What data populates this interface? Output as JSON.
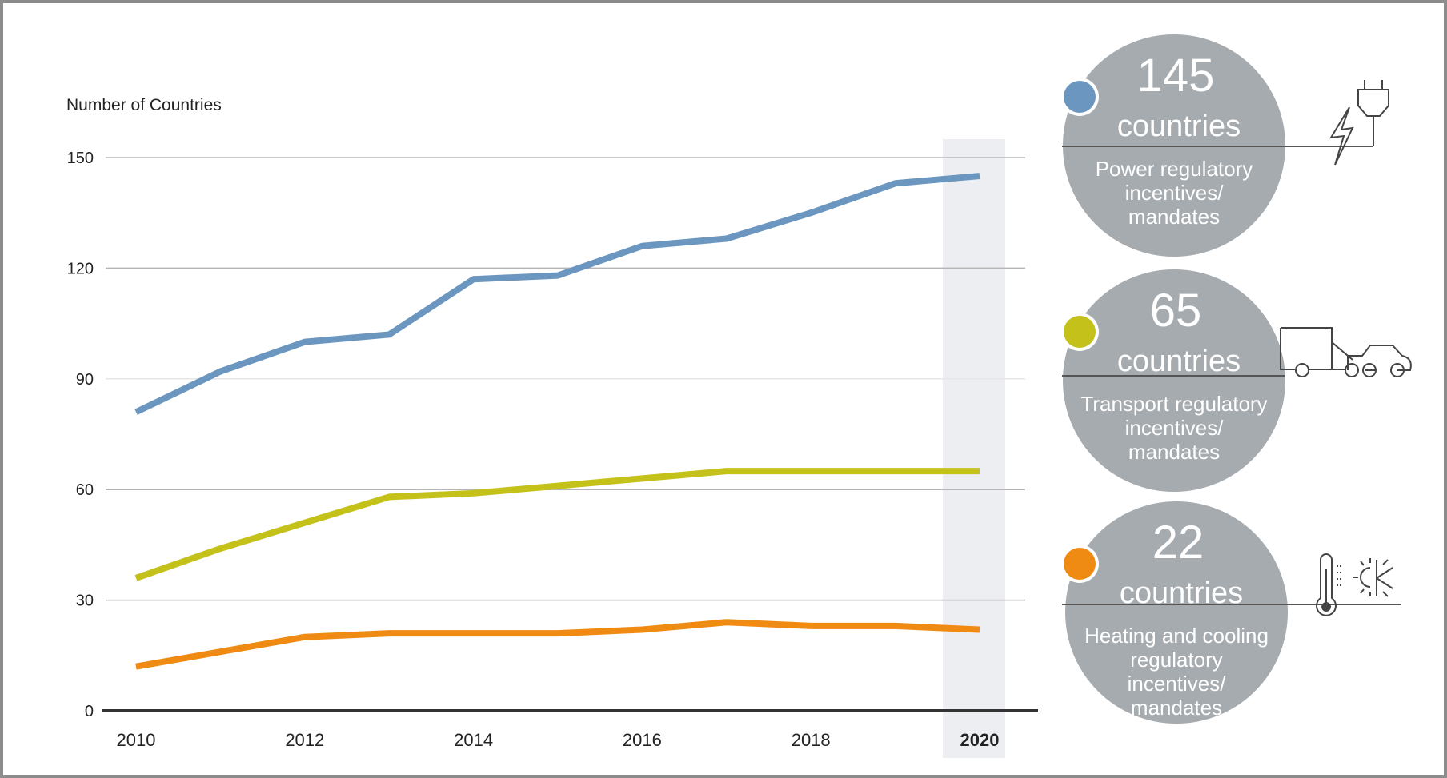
{
  "chart_data": {
    "type": "line",
    "ylabel": "Number of Countries",
    "xlabel": "",
    "x": [
      2010,
      2011,
      2012,
      2013,
      2014,
      2015,
      2016,
      2017,
      2018,
      2019,
      2020
    ],
    "x_tick_labels": [
      "2010",
      "2012",
      "2014",
      "2016",
      "2018",
      "2020"
    ],
    "y_tick_labels": [
      "0",
      "30",
      "60",
      "90",
      "120",
      "150"
    ],
    "ylim": [
      0,
      150
    ],
    "xlim": [
      2010,
      2020
    ],
    "grid": "horizontal",
    "highlighted_x": 2020,
    "series": [
      {
        "color": "#6b96bf",
        "values": [
          81,
          92,
          100,
          102,
          117,
          118,
          126,
          128,
          135,
          143,
          145
        ]
      },
      {
        "color": "#c3c11a",
        "values": [
          36,
          44,
          51,
          58,
          59,
          61,
          63,
          65,
          65,
          65,
          65
        ]
      },
      {
        "color": "#ef8a12",
        "values": [
          12,
          16,
          20,
          21,
          21,
          21,
          22,
          24,
          23,
          23,
          22
        ]
      }
    ]
  },
  "callouts": [
    {
      "number": "145",
      "unit": "countries",
      "lines": [
        "Power regulatory",
        "incentives/",
        "mandates"
      ],
      "color": "#6b96bf",
      "icon": "plug-lightning-icon"
    },
    {
      "number": "65",
      "unit": "countries",
      "lines": [
        "Transport regulatory",
        "incentives/",
        "mandates"
      ],
      "color": "#c3c11a",
      "icon": "truck-car-icon"
    },
    {
      "number": "22",
      "unit": "countries",
      "lines": [
        "Heating and cooling",
        "regulatory",
        "incentives/",
        "mandates"
      ],
      "color": "#ef8a12",
      "icon": "thermometer-sun-snow-icon"
    }
  ],
  "colors": {
    "circle": "#a6abb0",
    "highlight": "#eceef1",
    "grid": "#b5b5b5",
    "frame": "#8c8c8c"
  }
}
